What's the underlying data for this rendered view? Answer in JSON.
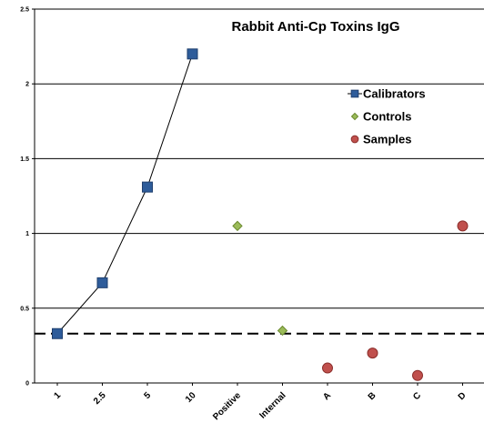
{
  "chart_data": {
    "type": "scatter",
    "title": "Rabbit Anti-Cp Toxins IgG",
    "xlabel": "",
    "ylabel": "",
    "categories": [
      "1",
      "2.5",
      "5",
      "10",
      "Positive",
      "Internal",
      "A",
      "B",
      "C",
      "D"
    ],
    "ylim": [
      0,
      2.5
    ],
    "yticks": [
      "0",
      "0.5",
      "1",
      "1.5",
      "2",
      "2.5"
    ],
    "grid": true,
    "legend_position": "top-right",
    "cutoff_line": 0.33,
    "series": [
      {
        "name": "Calibrators",
        "marker": "square",
        "color": "#2e5c9a",
        "connected": true,
        "points": [
          {
            "x": "1",
            "y": 0.33
          },
          {
            "x": "2.5",
            "y": 0.67
          },
          {
            "x": "5",
            "y": 1.31
          },
          {
            "x": "10",
            "y": 2.2
          }
        ]
      },
      {
        "name": "Controls",
        "marker": "diamond",
        "color": "#9bbb59",
        "connected": false,
        "points": [
          {
            "x": "Positive",
            "y": 1.05
          },
          {
            "x": "Internal",
            "y": 0.35
          }
        ]
      },
      {
        "name": "Samples",
        "marker": "circle",
        "color": "#c0504d",
        "connected": false,
        "points": [
          {
            "x": "A",
            "y": 0.1
          },
          {
            "x": "B",
            "y": 0.2
          },
          {
            "x": "C",
            "y": 0.05
          },
          {
            "x": "D",
            "y": 1.05
          }
        ]
      }
    ]
  }
}
